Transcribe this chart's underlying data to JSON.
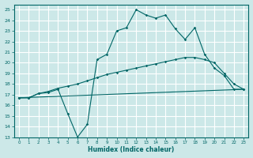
{
  "xlabel": "Humidex (Indice chaleur)",
  "bg_color": "#cce8e8",
  "grid_color": "#ffffff",
  "line_color": "#006666",
  "xlim": [
    -0.5,
    23.5
  ],
  "ylim": [
    13,
    25.5
  ],
  "xticks": [
    0,
    1,
    2,
    3,
    4,
    5,
    6,
    7,
    8,
    9,
    10,
    11,
    12,
    13,
    14,
    15,
    16,
    17,
    18,
    19,
    20,
    21,
    22,
    23
  ],
  "yticks": [
    13,
    14,
    15,
    16,
    17,
    18,
    19,
    20,
    21,
    22,
    23,
    24,
    25
  ],
  "line1_x": [
    0,
    1,
    2,
    3,
    4,
    5,
    6,
    7,
    8,
    9,
    10,
    11,
    12,
    13,
    14,
    15,
    16,
    17,
    18,
    19,
    20,
    21,
    22,
    23
  ],
  "line1_y": [
    16.7,
    16.7,
    17.1,
    17.2,
    17.5,
    15.2,
    13.0,
    14.2,
    20.3,
    20.8,
    23.0,
    23.3,
    25.0,
    24.5,
    24.2,
    24.5,
    23.2,
    22.2,
    23.3,
    20.8,
    19.5,
    18.8,
    17.5,
    17.5
  ],
  "line2_x": [
    0,
    23
  ],
  "line2_y": [
    16.7,
    17.5
  ],
  "line3_x": [
    0,
    1,
    2,
    3,
    4,
    5,
    6,
    7,
    8,
    9,
    10,
    11,
    12,
    13,
    14,
    15,
    16,
    17,
    18,
    19,
    20,
    21,
    22,
    23
  ],
  "line3_y": [
    16.7,
    16.7,
    17.1,
    17.3,
    17.6,
    17.8,
    18.0,
    18.3,
    18.6,
    18.9,
    19.1,
    19.3,
    19.5,
    19.7,
    19.9,
    20.1,
    20.3,
    20.5,
    20.5,
    20.3,
    20.0,
    19.0,
    18.0,
    17.5
  ]
}
